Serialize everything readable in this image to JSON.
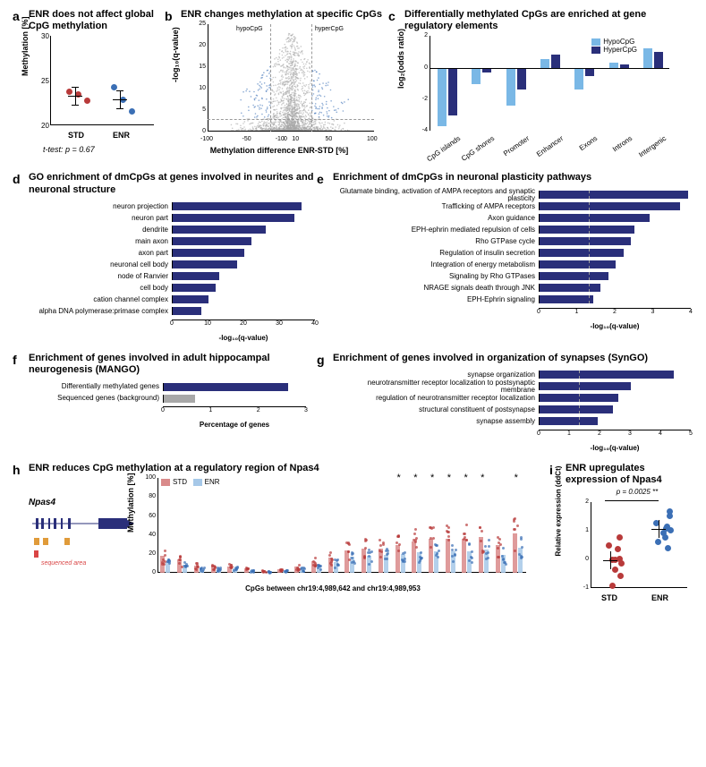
{
  "colors": {
    "darkblue": "#2a2f7a",
    "lightblue": "#7ab8e6",
    "medblue": "#3b6fb5",
    "grey": "#a8a8a8",
    "red": "#b83a3a",
    "lightred": "#e8a6a6",
    "orange": "#e09b3a",
    "redmark": "#d94545"
  },
  "a": {
    "letter": "a",
    "title": "ENR does not affect global CpG methylation",
    "ytitle": "Methylation [%]",
    "ylim": [
      20,
      30
    ],
    "yticks": [
      20,
      25,
      30
    ],
    "groups": [
      "STD",
      "ENR"
    ],
    "points_std": [
      23.8,
      23.5,
      22.8
    ],
    "points_enr": [
      24.3,
      22.9,
      21.6
    ],
    "std_color": "#b83a3a",
    "enr_color": "#3b6fb5",
    "ttest": "t-test: p = 0.67"
  },
  "b": {
    "letter": "b",
    "title": "ENR changes methylation at specific CpGs",
    "ytitle": "-log₁₀(q-value)",
    "xtitle": "Methylation difference ENR-STD [%]",
    "ylim": [
      0,
      25
    ],
    "yticks": [
      0,
      5,
      10,
      15,
      20,
      25
    ],
    "xlim": [
      -100,
      100
    ],
    "xticks": [
      -100,
      -50,
      -10,
      0,
      10,
      50,
      100
    ],
    "vlines": [
      -25,
      25
    ],
    "hline_q": 3,
    "anno_left": "hypoCpG",
    "anno_right": "hyperCpG",
    "sig_color": "#3b6fb5",
    "ns_color": "#a8a8a8"
  },
  "c": {
    "letter": "c",
    "title": "Differentially methylated CpGs are enriched at gene regulatory elements",
    "ytitle": "log₂(odds ratio)",
    "ylim": [
      -4,
      2
    ],
    "yticks": [
      -4,
      -2,
      0,
      2
    ],
    "categories": [
      "CpG islands",
      "CpG shores",
      "Promoter",
      "Enhancer",
      "Exons",
      "Introns",
      "Intergenic"
    ],
    "hypo": [
      -3.7,
      -1.05,
      -2.4,
      0.55,
      -1.4,
      0.3,
      1.25
    ],
    "hyper": [
      -3.0,
      -0.3,
      -1.4,
      0.85,
      -0.5,
      0.2,
      1.0
    ],
    "hypo_color": "#7ab8e6",
    "hyper_color": "#2a2f7a",
    "legend": [
      "HypoCpG",
      "HyperCpG"
    ]
  },
  "d": {
    "letter": "d",
    "title": "GO enrichment of dmCpGs at genes involved in neurites and neuronal structure",
    "xtitle": "-log₁₀(q-value)",
    "xlim": [
      0,
      40
    ],
    "xticks": [
      0,
      10,
      20,
      30,
      40
    ],
    "items": [
      {
        "label": "neuron projection",
        "v": 36
      },
      {
        "label": "neuron part",
        "v": 34
      },
      {
        "label": "dendrite",
        "v": 26
      },
      {
        "label": "main axon",
        "v": 22
      },
      {
        "label": "axon part",
        "v": 20
      },
      {
        "label": "neuronal cell body",
        "v": 18
      },
      {
        "label": "node of Ranvier",
        "v": 13
      },
      {
        "label": "cell body",
        "v": 12
      },
      {
        "label": "cation channel complex",
        "v": 10
      },
      {
        "label": "alpha DNA polymerase:primase complex",
        "v": 8
      }
    ],
    "bar_color": "#2a2f7a"
  },
  "e": {
    "letter": "e",
    "title": "Enrichment of dmCpGs in neuronal plasticity pathways",
    "xtitle": "-log₁₀(q-value)",
    "xlim": [
      0,
      4
    ],
    "xticks": [
      0,
      1,
      2,
      3,
      4
    ],
    "vline": 1.3,
    "items": [
      {
        "label": "Glutamate binding, activation of AMPA receptors and synaptic plasticity",
        "v": 3.9
      },
      {
        "label": "Trafficking of AMPA receptors",
        "v": 3.7
      },
      {
        "label": "Axon guidance",
        "v": 2.9
      },
      {
        "label": "EPH-ephrin mediated repulsion of cells",
        "v": 2.5
      },
      {
        "label": "Rho GTPase cycle",
        "v": 2.4
      },
      {
        "label": "Regulation of insulin secretion",
        "v": 2.2
      },
      {
        "label": "Integration of energy metabolism",
        "v": 2.0
      },
      {
        "label": "Signaling by Rho GTPases",
        "v": 1.8
      },
      {
        "label": "NRAGE signals death through JNK",
        "v": 1.6
      },
      {
        "label": "EPH-Ephrin signaling",
        "v": 1.4
      }
    ],
    "bar_color": "#2a2f7a"
  },
  "f": {
    "letter": "f",
    "title": "Enrichment of genes involved in adult hippocampal neurogenesis (MANGO)",
    "xtitle": "Percentage of genes",
    "xlim": [
      0,
      3
    ],
    "xticks": [
      0,
      1,
      2,
      3
    ],
    "items": [
      {
        "label": "Differentially methylated genes",
        "v": 2.6,
        "color": "#2a2f7a"
      },
      {
        "label": "Sequenced genes (background)",
        "v": 0.65,
        "color": "#a8a8a8"
      }
    ]
  },
  "g": {
    "letter": "g",
    "title": "Enrichment of genes involved in organization of synapses (SynGO)",
    "xtitle": "-log₁₀(q-value)",
    "xlim": [
      0,
      5
    ],
    "xticks": [
      0,
      1,
      2,
      3,
      4,
      5
    ],
    "vline": 1.3,
    "items": [
      {
        "label": "synapse organization",
        "v": 4.4
      },
      {
        "label": "neurotransmitter receptor localization to postsynaptic membrane",
        "v": 3.0
      },
      {
        "label": "regulation of neurotransmitter receptor localization",
        "v": 2.6
      },
      {
        "label": "structural constituent of postsynapse",
        "v": 2.4
      },
      {
        "label": "synapse assembly",
        "v": 1.9
      }
    ],
    "bar_color": "#2a2f7a"
  },
  "h": {
    "letter": "h",
    "title": "ENR reduces CpG methylation at a regulatory region of Npas4",
    "gene": "Npas4",
    "ytitle": "Methylation [%]",
    "ylim": [
      0,
      100
    ],
    "yticks": [
      0,
      20,
      40,
      60,
      80,
      100
    ],
    "xtitle": "CpGs between chr19:4,989,642 and chr19:4,989,953",
    "n_cpg": 22,
    "std_means": [
      18,
      14,
      8,
      8,
      7,
      5,
      3,
      4,
      7,
      12,
      16,
      24,
      26,
      26,
      29,
      33,
      36,
      36,
      36,
      38,
      29,
      42
    ],
    "enr_means": [
      11,
      9,
      5,
      5,
      5,
      3,
      2,
      3,
      5,
      8,
      11,
      17,
      18,
      19,
      20,
      22,
      23,
      23,
      23,
      25,
      19,
      27
    ],
    "stars": [
      0,
      0,
      0,
      0,
      0,
      0,
      0,
      0,
      0,
      0,
      0,
      0,
      0,
      0,
      1,
      1,
      1,
      1,
      1,
      1,
      0,
      1
    ],
    "legend": [
      "STD",
      "ENR"
    ],
    "std_color": "#d98a8a",
    "enr_color": "#a6c8e8",
    "seq_label": "sequenced area"
  },
  "i": {
    "letter": "i",
    "title": "ENR upregulates expression of Npas4",
    "ytitle": "Relative expression (ddCt)",
    "ylim": [
      -1,
      2
    ],
    "yticks": [
      -1,
      0,
      1,
      2
    ],
    "groups": [
      "STD",
      "ENR"
    ],
    "pval": "p = 0.0025 **",
    "points_std": [
      -0.9,
      -0.55,
      -0.32,
      0.02,
      0.05,
      0.38,
      0.5,
      0.78,
      0.0,
      -0.1
    ],
    "points_enr": [
      0.42,
      0.62,
      0.8,
      0.95,
      1.05,
      1.18,
      1.3,
      1.55,
      1.7,
      1.1
    ],
    "std_color": "#b83a3a",
    "enr_color": "#3b6fb5"
  }
}
